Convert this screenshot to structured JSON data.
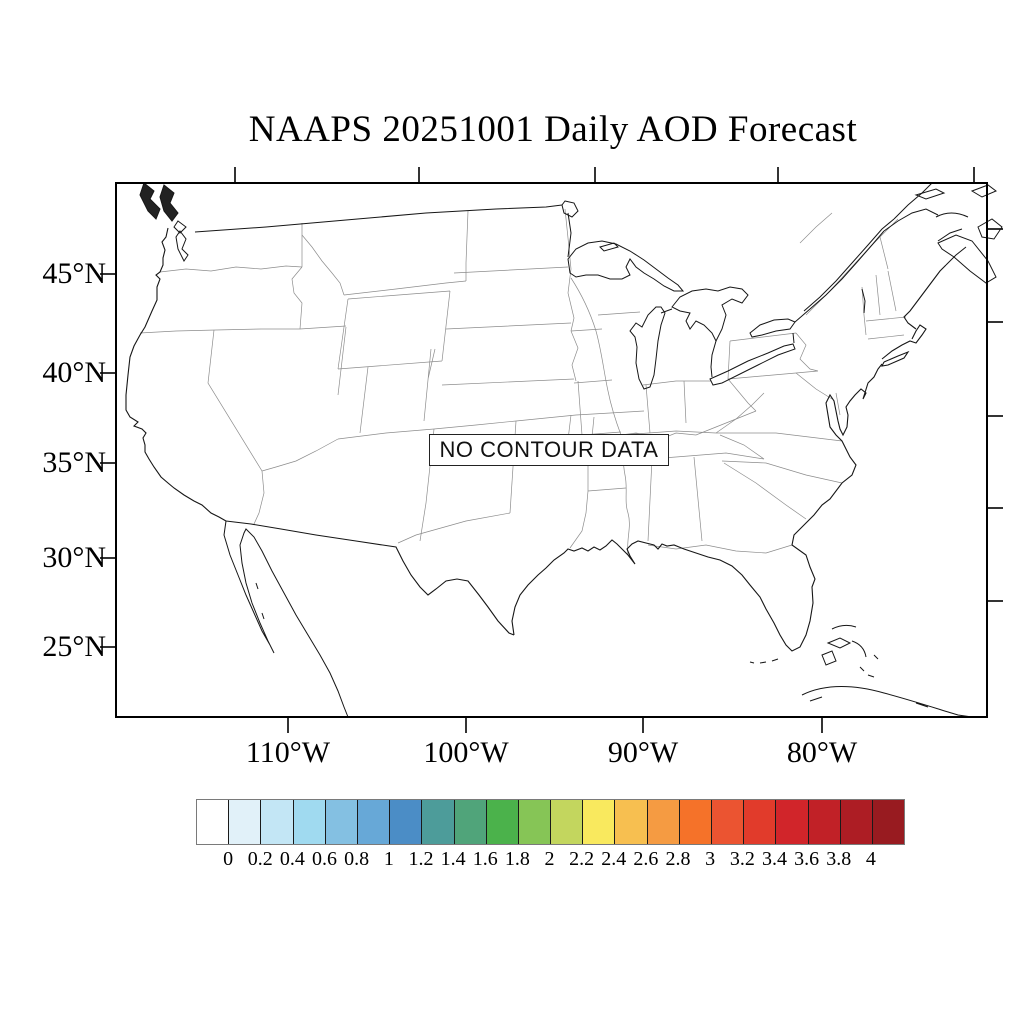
{
  "title": "NAAPS 20251001 Daily AOD Forecast",
  "map": {
    "no_data_label": "NO CONTOUR DATA",
    "lat_tick_labels": [
      "45°N",
      "40°N",
      "35°N",
      "30°N",
      "25°N"
    ],
    "lon_tick_labels": [
      "110°W",
      "100°W",
      "90°W",
      "80°W"
    ],
    "region": "Continental United States"
  },
  "colorbar": {
    "variable": "AOD",
    "tick_labels": [
      "0",
      "0.2",
      "0.4",
      "0.6",
      "0.8",
      "1",
      "1.2",
      "1.4",
      "1.6",
      "1.8",
      "2",
      "2.2",
      "2.4",
      "2.6",
      "2.8",
      "3",
      "3.2",
      "3.4",
      "3.6",
      "3.8",
      "4"
    ],
    "cell_colors": [
      "#ffffff",
      "#e1f1f9",
      "#c3e6f5",
      "#a0daf0",
      "#84c0e2",
      "#67a8d7",
      "#4b8dc6",
      "#4d9c9a",
      "#50a47a",
      "#4bb24b",
      "#86c556",
      "#c3d65e",
      "#f9e95e",
      "#f7bf50",
      "#f59b42",
      "#f57229",
      "#eb5431",
      "#e13b2b",
      "#d1252a",
      "#c12127",
      "#ad1d24",
      "#981b20"
    ]
  },
  "chart_data": {
    "type": "heatmap",
    "title": "NAAPS 20251001 Daily AOD Forecast",
    "values": [],
    "note": "NO CONTOUR DATA",
    "colorbar_levels": [
      0,
      0.2,
      0.4,
      0.6,
      0.8,
      1,
      1.2,
      1.4,
      1.6,
      1.8,
      2,
      2.2,
      2.4,
      2.6,
      2.8,
      3,
      3.2,
      3.4,
      3.6,
      3.8,
      4
    ],
    "x_ticks": [
      "110°W",
      "100°W",
      "90°W",
      "80°W"
    ],
    "y_ticks": [
      "45°N",
      "40°N",
      "35°N",
      "30°N",
      "25°N"
    ]
  }
}
